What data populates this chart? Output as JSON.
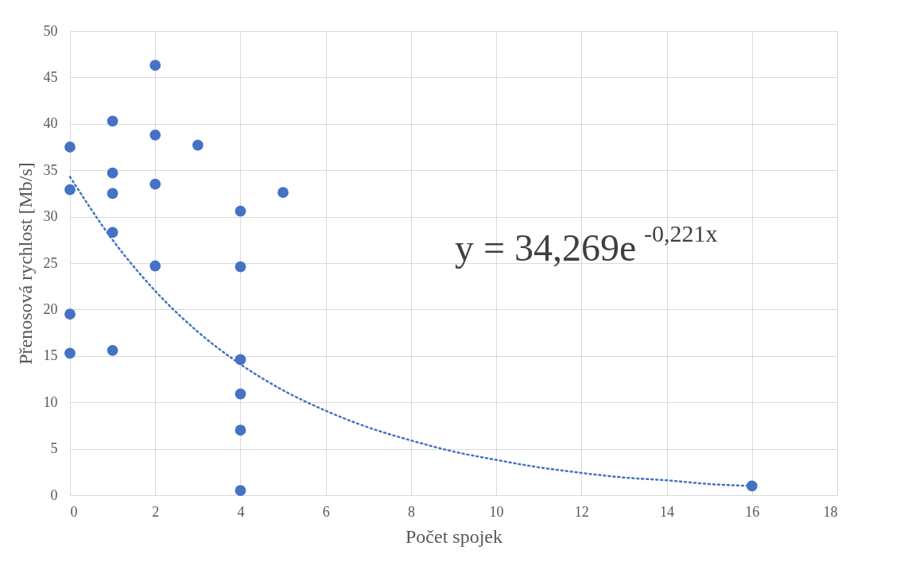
{
  "chart_data": {
    "type": "scatter",
    "xlabel": "Počet spojek",
    "ylabel": "Přenosová rychlost [Mb/s]",
    "xlim": [
      0,
      18
    ],
    "xticks": [
      0,
      2,
      4,
      6,
      8,
      10,
      12,
      14,
      16,
      18
    ],
    "ylim": [
      0,
      50
    ],
    "yticks": [
      0,
      5,
      10,
      15,
      20,
      25,
      30,
      35,
      40,
      45,
      50
    ],
    "grid": true,
    "marker": "circle",
    "annotations": [
      "y = 34,269e$^{-0,221x}$"
    ],
    "series": [
      {
        "color": "#4472c4",
        "x": [
          0,
          0,
          0,
          0,
          1,
          1,
          1,
          1,
          1,
          2,
          2,
          2,
          2,
          3,
          4,
          4,
          4,
          4,
          4,
          4,
          5,
          16
        ],
        "values": [
          37.5,
          32.9,
          19.5,
          15.3,
          40.3,
          34.7,
          32.5,
          28.3,
          15.6,
          46.3,
          38.8,
          33.5,
          24.7,
          37.7,
          30.6,
          24.6,
          14.6,
          10.9,
          7.0,
          0.5,
          32.6,
          1.0
        ]
      },
      {
        "type": "line",
        "color": "#4472c4",
        "line_style": "dotted",
        "marker": "none",
        "x": [
          0,
          1,
          2,
          3,
          4,
          5,
          6,
          7,
          8,
          9,
          10,
          11,
          12,
          13,
          14,
          15,
          16
        ],
        "values": [
          34.3,
          27.5,
          22.0,
          17.6,
          14.1,
          11.3,
          9.1,
          7.3,
          5.9,
          4.7,
          3.8,
          3.0,
          2.4,
          1.9,
          1.6,
          1.2,
          1.0
        ]
      }
    ]
  }
}
